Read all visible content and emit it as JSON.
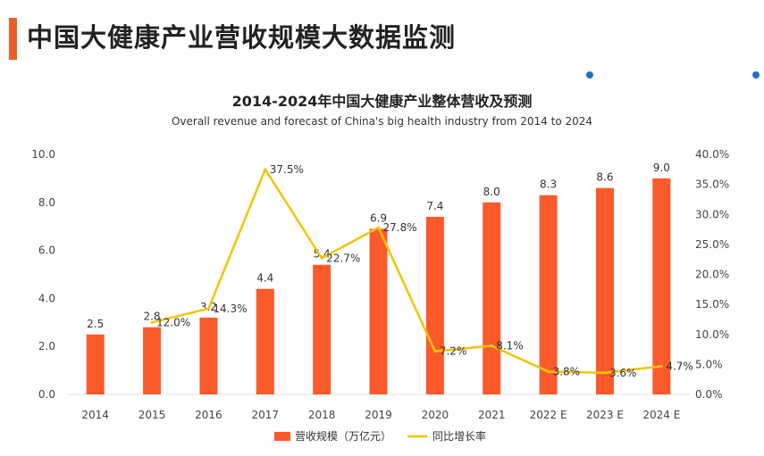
{
  "header": {
    "title": "中国大健康产业营收规模大数据监测",
    "accent_color": "#f05a28"
  },
  "decor": {
    "dot_color": "#1f6fc5"
  },
  "chart_data": {
    "type": "bar",
    "title": "2014-2024年中国大健康产业整体营收及预测",
    "subtitle": "Overall revenue and forecast of China's big health industry from 2014 to 2024",
    "categories": [
      "2014",
      "2015",
      "2016",
      "2017",
      "2018",
      "2019",
      "2020",
      "2021",
      "2022 E",
      "2023 E",
      "2024 E"
    ],
    "series": [
      {
        "name": "营收规模（万亿元）",
        "type": "bar",
        "axis": "left",
        "color": "#fb5a2a",
        "values": [
          2.5,
          2.8,
          3.2,
          4.4,
          5.4,
          6.9,
          7.4,
          8.0,
          8.3,
          8.6,
          9.0
        ],
        "labels": [
          "2.5",
          "2.8",
          "3.2",
          "4.4",
          "5.4",
          "6.9",
          "7.4",
          "8.0",
          "8.3",
          "8.6",
          "9.0"
        ]
      },
      {
        "name": "同比增长率",
        "type": "line",
        "axis": "right",
        "color": "#f2c40a",
        "values": [
          null,
          12.0,
          14.3,
          37.5,
          22.7,
          27.8,
          7.2,
          8.1,
          3.8,
          3.6,
          4.7
        ],
        "labels": [
          "",
          "12.0%",
          "14.3%",
          "37.5%",
          "22.7%",
          "27.8%",
          "7.2%",
          "8.1%",
          "3.8%",
          "3.6%",
          "4.7%"
        ]
      }
    ],
    "y_left": {
      "ylim": [
        0,
        10
      ],
      "ticks": [
        0,
        2,
        4,
        6,
        8,
        10
      ],
      "tick_labels": [
        "0.0",
        "2.0",
        "4.0",
        "6.0",
        "8.0",
        "10.0"
      ]
    },
    "y_right": {
      "ylim": [
        0,
        40
      ],
      "ticks": [
        0,
        5,
        10,
        15,
        20,
        25,
        30,
        35,
        40
      ],
      "tick_labels": [
        "0.0%",
        "5.0%",
        "10.0%",
        "15.0%",
        "20.0%",
        "25.0%",
        "30.0%",
        "35.0%",
        "40.0%"
      ]
    },
    "grid": false,
    "legend_position": "bottom"
  }
}
